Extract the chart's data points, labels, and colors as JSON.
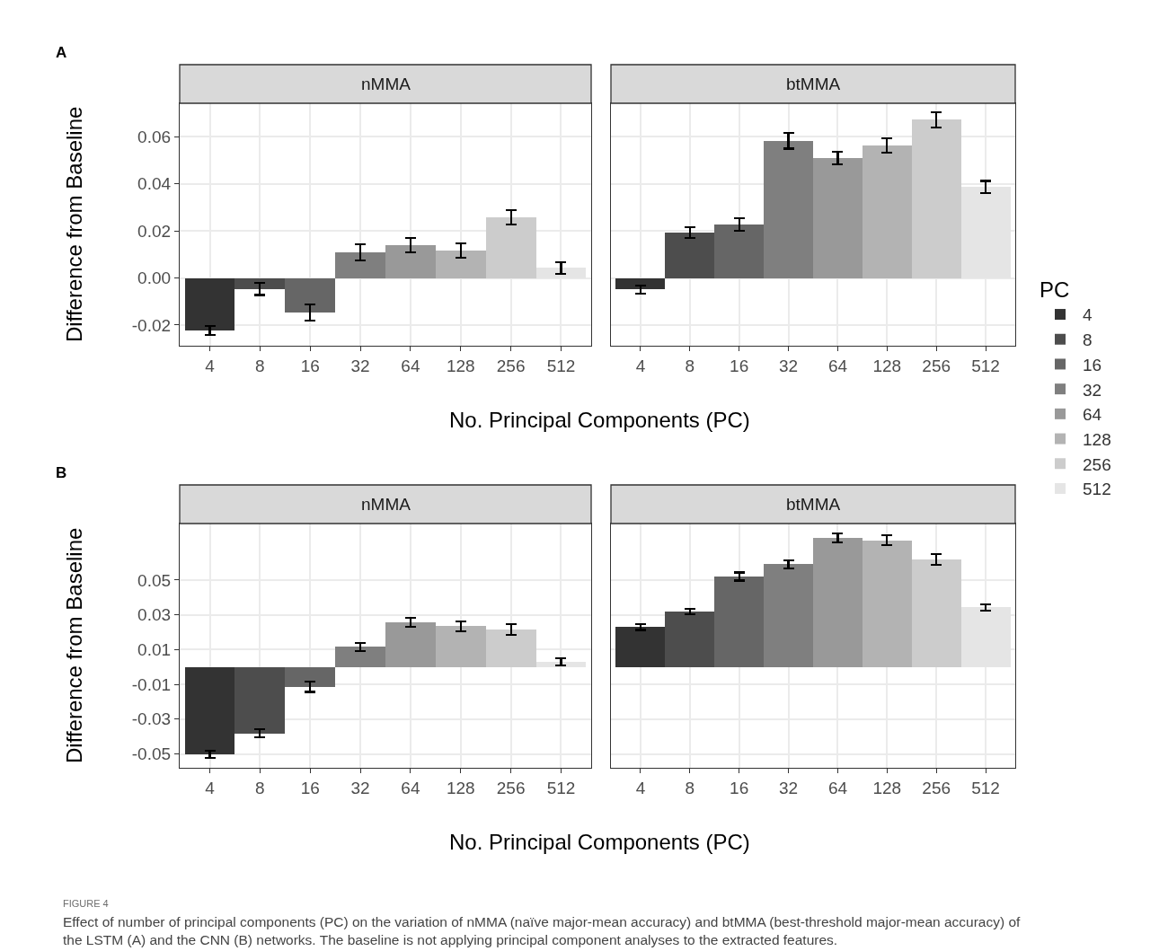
{
  "chart_data": [
    {
      "type": "bar",
      "title": "nMMA",
      "ylabel": "Difference from Baseline",
      "xlabel": "No. Principal Components (PC)",
      "legend_title": "PC",
      "legend": "right",
      "grid": true,
      "tick_labels": "xy",
      "annotations": [
        "A"
      ],
      "categories": [
        "4",
        "8",
        "16",
        "32",
        "64",
        "128",
        "256",
        "512"
      ],
      "series": [
        {
          "name": "4",
          "color": "#333333",
          "values": [
            -0.0223,
            null,
            null,
            null,
            null,
            null,
            null,
            null
          ],
          "errors": [
            0.002,
            null,
            null,
            null,
            null,
            null,
            null,
            null
          ]
        },
        {
          "name": "8",
          "color": "#4d4d4d",
          "values": [
            null,
            -0.0047,
            null,
            null,
            null,
            null,
            null,
            null
          ],
          "errors": [
            null,
            0.0025,
            null,
            null,
            null,
            null,
            null,
            null
          ]
        },
        {
          "name": "16",
          "color": "#666666",
          "values": [
            null,
            null,
            -0.0147,
            null,
            null,
            null,
            null,
            null
          ],
          "errors": [
            null,
            null,
            0.0034,
            null,
            null,
            null,
            null,
            null
          ]
        },
        {
          "name": "32",
          "color": "#7f7f7f",
          "values": [
            null,
            null,
            null,
            0.0109,
            null,
            null,
            null,
            null
          ],
          "errors": [
            null,
            null,
            null,
            0.0033,
            null,
            null,
            null,
            null
          ]
        },
        {
          "name": "64",
          "color": "#999999",
          "values": [
            null,
            null,
            null,
            null,
            0.0139,
            null,
            null,
            null
          ],
          "errors": [
            null,
            null,
            null,
            null,
            0.0031,
            null,
            null,
            null
          ]
        },
        {
          "name": "128",
          "color": "#b3b3b3",
          "values": [
            null,
            null,
            null,
            null,
            null,
            0.0116,
            null,
            null
          ],
          "errors": [
            null,
            null,
            null,
            null,
            null,
            0.003,
            null,
            null
          ]
        },
        {
          "name": "256",
          "color": "#cccccc",
          "values": [
            null,
            null,
            null,
            null,
            null,
            null,
            0.0258,
            null
          ],
          "errors": [
            null,
            null,
            null,
            null,
            null,
            null,
            0.003,
            null
          ]
        },
        {
          "name": "512",
          "color": "#e5e5e5",
          "values": [
            null,
            null,
            null,
            null,
            null,
            null,
            null,
            0.0043
          ],
          "errors": [
            null,
            null,
            null,
            null,
            null,
            null,
            null,
            0.0025
          ]
        }
      ],
      "ylim": [
        -0.0288,
        0.0743
      ],
      "yticks": [
        -0.02,
        {
          "value": 0,
          "label": "0.00"
        },
        0.02,
        0.04,
        0.06
      ]
    },
    {
      "type": "bar",
      "title": "btMMA",
      "grid": true,
      "tick_labels": "x",
      "categories": [
        "4",
        "8",
        "16",
        "32",
        "64",
        "128",
        "256",
        "512"
      ],
      "series": [
        {
          "color": "#333333",
          "values": [
            -0.0048,
            null,
            null,
            null,
            null,
            null,
            null,
            null
          ],
          "errors": [
            0.0017,
            null,
            null,
            null,
            null,
            null,
            null,
            null
          ]
        },
        {
          "color": "#4d4d4d",
          "values": [
            null,
            0.0192,
            null,
            null,
            null,
            null,
            null,
            null
          ],
          "errors": [
            null,
            0.0023,
            null,
            null,
            null,
            null,
            null,
            null
          ]
        },
        {
          "color": "#666666",
          "values": [
            null,
            null,
            0.0227,
            null,
            null,
            null,
            null,
            null
          ],
          "errors": [
            null,
            null,
            0.0027,
            null,
            null,
            null,
            null,
            null
          ]
        },
        {
          "color": "#7f7f7f",
          "values": [
            null,
            null,
            null,
            0.0583,
            null,
            null,
            null,
            null
          ],
          "errors": [
            null,
            null,
            null,
            0.0033,
            null,
            null,
            null,
            null
          ]
        },
        {
          "color": "#999999",
          "values": [
            null,
            null,
            null,
            null,
            0.051,
            null,
            null,
            null
          ],
          "errors": [
            null,
            null,
            null,
            null,
            0.0027,
            null,
            null,
            null
          ]
        },
        {
          "color": "#b3b3b3",
          "values": [
            null,
            null,
            null,
            null,
            null,
            0.0564,
            null,
            null
          ],
          "errors": [
            null,
            null,
            null,
            null,
            null,
            0.003,
            null,
            null
          ]
        },
        {
          "color": "#cccccc",
          "values": [
            null,
            null,
            null,
            null,
            null,
            null,
            0.0673,
            null
          ],
          "errors": [
            null,
            null,
            null,
            null,
            null,
            null,
            0.0033,
            null
          ]
        },
        {
          "color": "#e5e5e5",
          "values": [
            null,
            null,
            null,
            null,
            null,
            null,
            null,
            0.0387
          ],
          "errors": [
            null,
            null,
            null,
            null,
            null,
            null,
            null,
            0.0026
          ]
        }
      ],
      "ylim": [
        -0.0288,
        0.0743
      ],
      "yticks": [
        -0.02,
        0,
        0.02,
        0.04,
        0.06
      ]
    },
    {
      "type": "bar",
      "title": "nMMA",
      "ylabel": "Difference from Baseline",
      "xlabel": "No. Principal Components (PC)",
      "grid": true,
      "tick_labels": "xy",
      "annotations": [
        "B"
      ],
      "categories": [
        "4",
        "8",
        "16",
        "32",
        "64",
        "128",
        "256",
        "512"
      ],
      "series": [
        {
          "color": "#333333",
          "values": [
            -0.0502,
            null,
            null,
            null,
            null,
            null,
            null,
            null
          ],
          "errors": [
            0.002,
            null,
            null,
            null,
            null,
            null,
            null,
            null
          ]
        },
        {
          "color": "#4d4d4d",
          "values": [
            null,
            -0.0382,
            null,
            null,
            null,
            null,
            null,
            null
          ],
          "errors": [
            null,
            0.0023,
            null,
            null,
            null,
            null,
            null,
            null
          ]
        },
        {
          "color": "#666666",
          "values": [
            null,
            null,
            -0.0114,
            null,
            null,
            null,
            null,
            null
          ],
          "errors": [
            null,
            null,
            0.0029,
            null,
            null,
            null,
            null,
            null
          ]
        },
        {
          "color": "#7f7f7f",
          "values": [
            null,
            null,
            null,
            0.0116,
            null,
            null,
            null,
            null
          ],
          "errors": [
            null,
            null,
            null,
            0.0023,
            null,
            null,
            null,
            null
          ]
        },
        {
          "color": "#999999",
          "values": [
            null,
            null,
            null,
            null,
            0.0257,
            null,
            null,
            null
          ],
          "errors": [
            null,
            null,
            null,
            null,
            0.0026,
            null,
            null,
            null
          ]
        },
        {
          "color": "#b3b3b3",
          "values": [
            null,
            null,
            null,
            null,
            null,
            0.0235,
            null,
            null
          ],
          "errors": [
            null,
            null,
            null,
            null,
            null,
            0.0028,
            null,
            null
          ]
        },
        {
          "color": "#cccccc",
          "values": [
            null,
            null,
            null,
            null,
            null,
            null,
            0.0215,
            null
          ],
          "errors": [
            null,
            null,
            null,
            null,
            null,
            null,
            0.003,
            null
          ]
        },
        {
          "color": "#e5e5e5",
          "values": [
            null,
            null,
            null,
            null,
            null,
            null,
            null,
            0.003
          ],
          "errors": [
            null,
            null,
            null,
            null,
            null,
            null,
            null,
            0.0022
          ]
        }
      ],
      "ylim": [
        -0.058,
        0.0825
      ],
      "yticks": [
        -0.05,
        -0.03,
        -0.01,
        0.01,
        0.03,
        0.05
      ]
    },
    {
      "type": "bar",
      "title": "btMMA",
      "grid": true,
      "tick_labels": "x",
      "annotations": [
        "FIGURE 4",
        "Effect of number of principal components (PC) on the variation of nMMA (naïve major-mean accuracy) and btMMA (best-threshold major-mean accuracy) of the LSTM (A) and the CNN (B) networks. The baseline is not applying principal component analyses to the extracted features."
      ],
      "categories": [
        "4",
        "8",
        "16",
        "32",
        "64",
        "128",
        "256",
        "512"
      ],
      "series": [
        {
          "color": "#333333",
          "values": [
            0.0229,
            null,
            null,
            null,
            null,
            null,
            null,
            null
          ],
          "errors": [
            0.0016,
            null,
            null,
            null,
            null,
            null,
            null,
            null
          ]
        },
        {
          "color": "#4d4d4d",
          "values": [
            null,
            0.0319,
            null,
            null,
            null,
            null,
            null,
            null
          ],
          "errors": [
            null,
            0.0017,
            null,
            null,
            null,
            null,
            null,
            null
          ]
        },
        {
          "color": "#666666",
          "values": [
            null,
            null,
            0.052,
            null,
            null,
            null,
            null,
            null
          ],
          "errors": [
            null,
            null,
            0.0023,
            null,
            null,
            null,
            null,
            null
          ]
        },
        {
          "color": "#7f7f7f",
          "values": [
            null,
            null,
            null,
            0.059,
            null,
            null,
            null,
            null
          ],
          "errors": [
            null,
            null,
            null,
            0.0024,
            null,
            null,
            null,
            null
          ]
        },
        {
          "color": "#999999",
          "values": [
            null,
            null,
            null,
            null,
            0.0742,
            null,
            null,
            null
          ],
          "errors": [
            null,
            null,
            null,
            null,
            0.0027,
            null,
            null,
            null
          ]
        },
        {
          "color": "#b3b3b3",
          "values": [
            null,
            null,
            null,
            null,
            null,
            0.0728,
            null,
            null
          ],
          "errors": [
            null,
            null,
            null,
            null,
            null,
            0.0028,
            null,
            null
          ]
        },
        {
          "color": "#cccccc",
          "values": [
            null,
            null,
            null,
            null,
            null,
            null,
            0.0618,
            null
          ],
          "errors": [
            null,
            null,
            null,
            null,
            null,
            null,
            0.003,
            null
          ]
        },
        {
          "color": "#e5e5e5",
          "values": [
            null,
            null,
            null,
            null,
            null,
            null,
            null,
            0.0344
          ],
          "errors": [
            null,
            null,
            null,
            null,
            null,
            null,
            null,
            0.0018
          ]
        }
      ],
      "ylim": [
        -0.058,
        0.0825
      ],
      "yticks": [
        -0.05,
        -0.03,
        -0.01,
        0.01,
        0.03,
        0.05
      ]
    }
  ]
}
